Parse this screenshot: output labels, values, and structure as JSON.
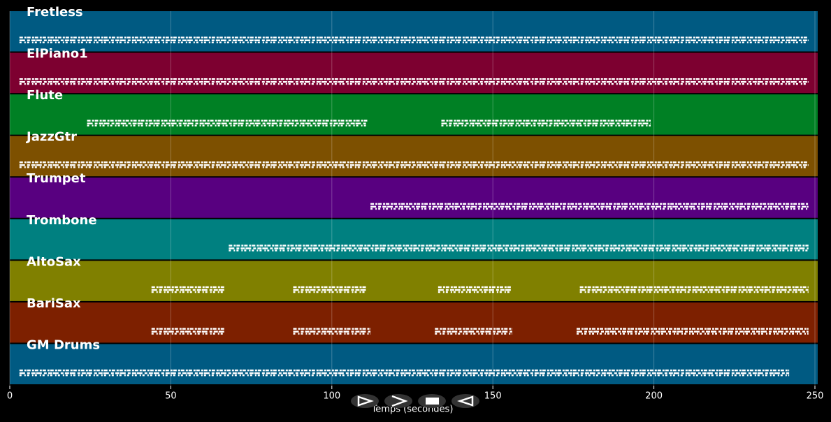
{
  "chart_data": {
    "type": "timeline",
    "xlabel": "Temps (secondes)",
    "xlim": [
      0,
      250
    ],
    "xticks": [
      0,
      50,
      100,
      150,
      200,
      250
    ],
    "grid": true,
    "series": [
      {
        "name": "Fretless",
        "color": "#005a82",
        "segments": [
          [
            3,
            248
          ]
        ]
      },
      {
        "name": "ElPiano1",
        "color": "#7d0030",
        "segments": [
          [
            3,
            248
          ]
        ]
      },
      {
        "name": "Flute",
        "color": "#008024",
        "segments": [
          [
            24,
            111
          ],
          [
            134,
            199
          ]
        ]
      },
      {
        "name": "JazzGtr",
        "color": "#7d5000",
        "segments": [
          [
            3,
            248
          ]
        ]
      },
      {
        "name": "Trumpet",
        "color": "#580080",
        "segments": [
          [
            112,
            248
          ]
        ]
      },
      {
        "name": "Trombone",
        "color": "#008080",
        "segments": [
          [
            68,
            248
          ]
        ]
      },
      {
        "name": "AltoSax",
        "color": "#808000",
        "segments": [
          [
            44,
            67
          ],
          [
            88,
            111
          ],
          [
            133,
            156
          ],
          [
            177,
            248
          ]
        ]
      },
      {
        "name": "BariSax",
        "color": "#7d2000",
        "segments": [
          [
            44,
            67
          ],
          [
            88,
            112
          ],
          [
            132,
            156
          ],
          [
            176,
            248
          ]
        ]
      },
      {
        "name": "GM Drums",
        "color": "#005a82",
        "segments": [
          [
            3,
            242
          ]
        ]
      }
    ]
  }
}
